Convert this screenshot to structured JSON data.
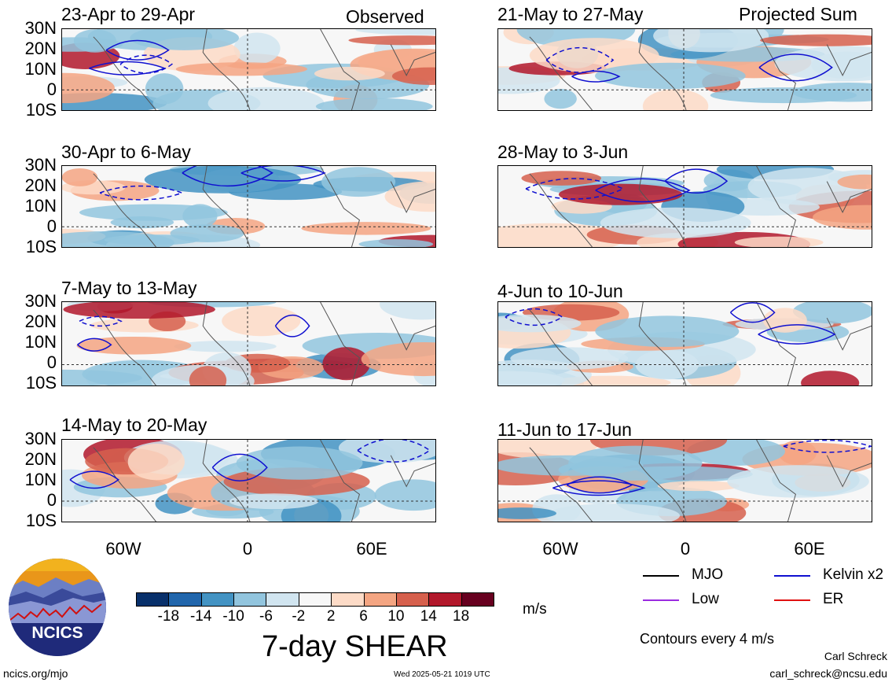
{
  "panels": [
    {
      "id": "p1",
      "title": "23-Apr to 29-Apr",
      "tag": "Observed"
    },
    {
      "id": "p2",
      "title": "21-May to 27-May",
      "tag": "Projected Sum"
    },
    {
      "id": "p3",
      "title": "30-Apr to 6-May",
      "tag": ""
    },
    {
      "id": "p4",
      "title": "28-May to 3-Jun",
      "tag": ""
    },
    {
      "id": "p5",
      "title": "7-May to 13-May",
      "tag": ""
    },
    {
      "id": "p6",
      "title": "4-Jun to 10-Jun",
      "tag": ""
    },
    {
      "id": "p7",
      "title": "14-May to 20-May",
      "tag": ""
    },
    {
      "id": "p8",
      "title": "11-Jun to 17-Jun",
      "tag": ""
    }
  ],
  "lat_labels": [
    "30N",
    "20N",
    "10N",
    "0",
    "10S"
  ],
  "lon_labels": [
    "60W",
    "0",
    "60E"
  ],
  "colorbar": {
    "colors": [
      "#08306b",
      "#2166ac",
      "#4393c3",
      "#92c5de",
      "#d1e5f0",
      "#f7f7f7",
      "#fddbc7",
      "#f4a582",
      "#d6604d",
      "#b2182b",
      "#67001f"
    ],
    "labels": [
      "-18",
      "-14",
      "-10",
      "-6",
      "-2",
      "2",
      "6",
      "10",
      "14",
      "18"
    ],
    "units": "m/s",
    "title": "7-day SHEAR"
  },
  "legend": {
    "items": [
      {
        "label": "MJO",
        "color": "#000000"
      },
      {
        "label": "Kelvin x2",
        "color": "#1010d0"
      },
      {
        "label": "Low",
        "color": "#9a2be0"
      },
      {
        "label": "ER",
        "color": "#e01010"
      }
    ],
    "note": "Contours every 4 m/s"
  },
  "logo_text": "NCICS",
  "footer": {
    "left": "ncics.org/mjo",
    "center": "Wed 2025-05-21 1019 UTC",
    "author": "Carl Schreck",
    "email": "carl_schreck@ncsu.edu"
  }
}
